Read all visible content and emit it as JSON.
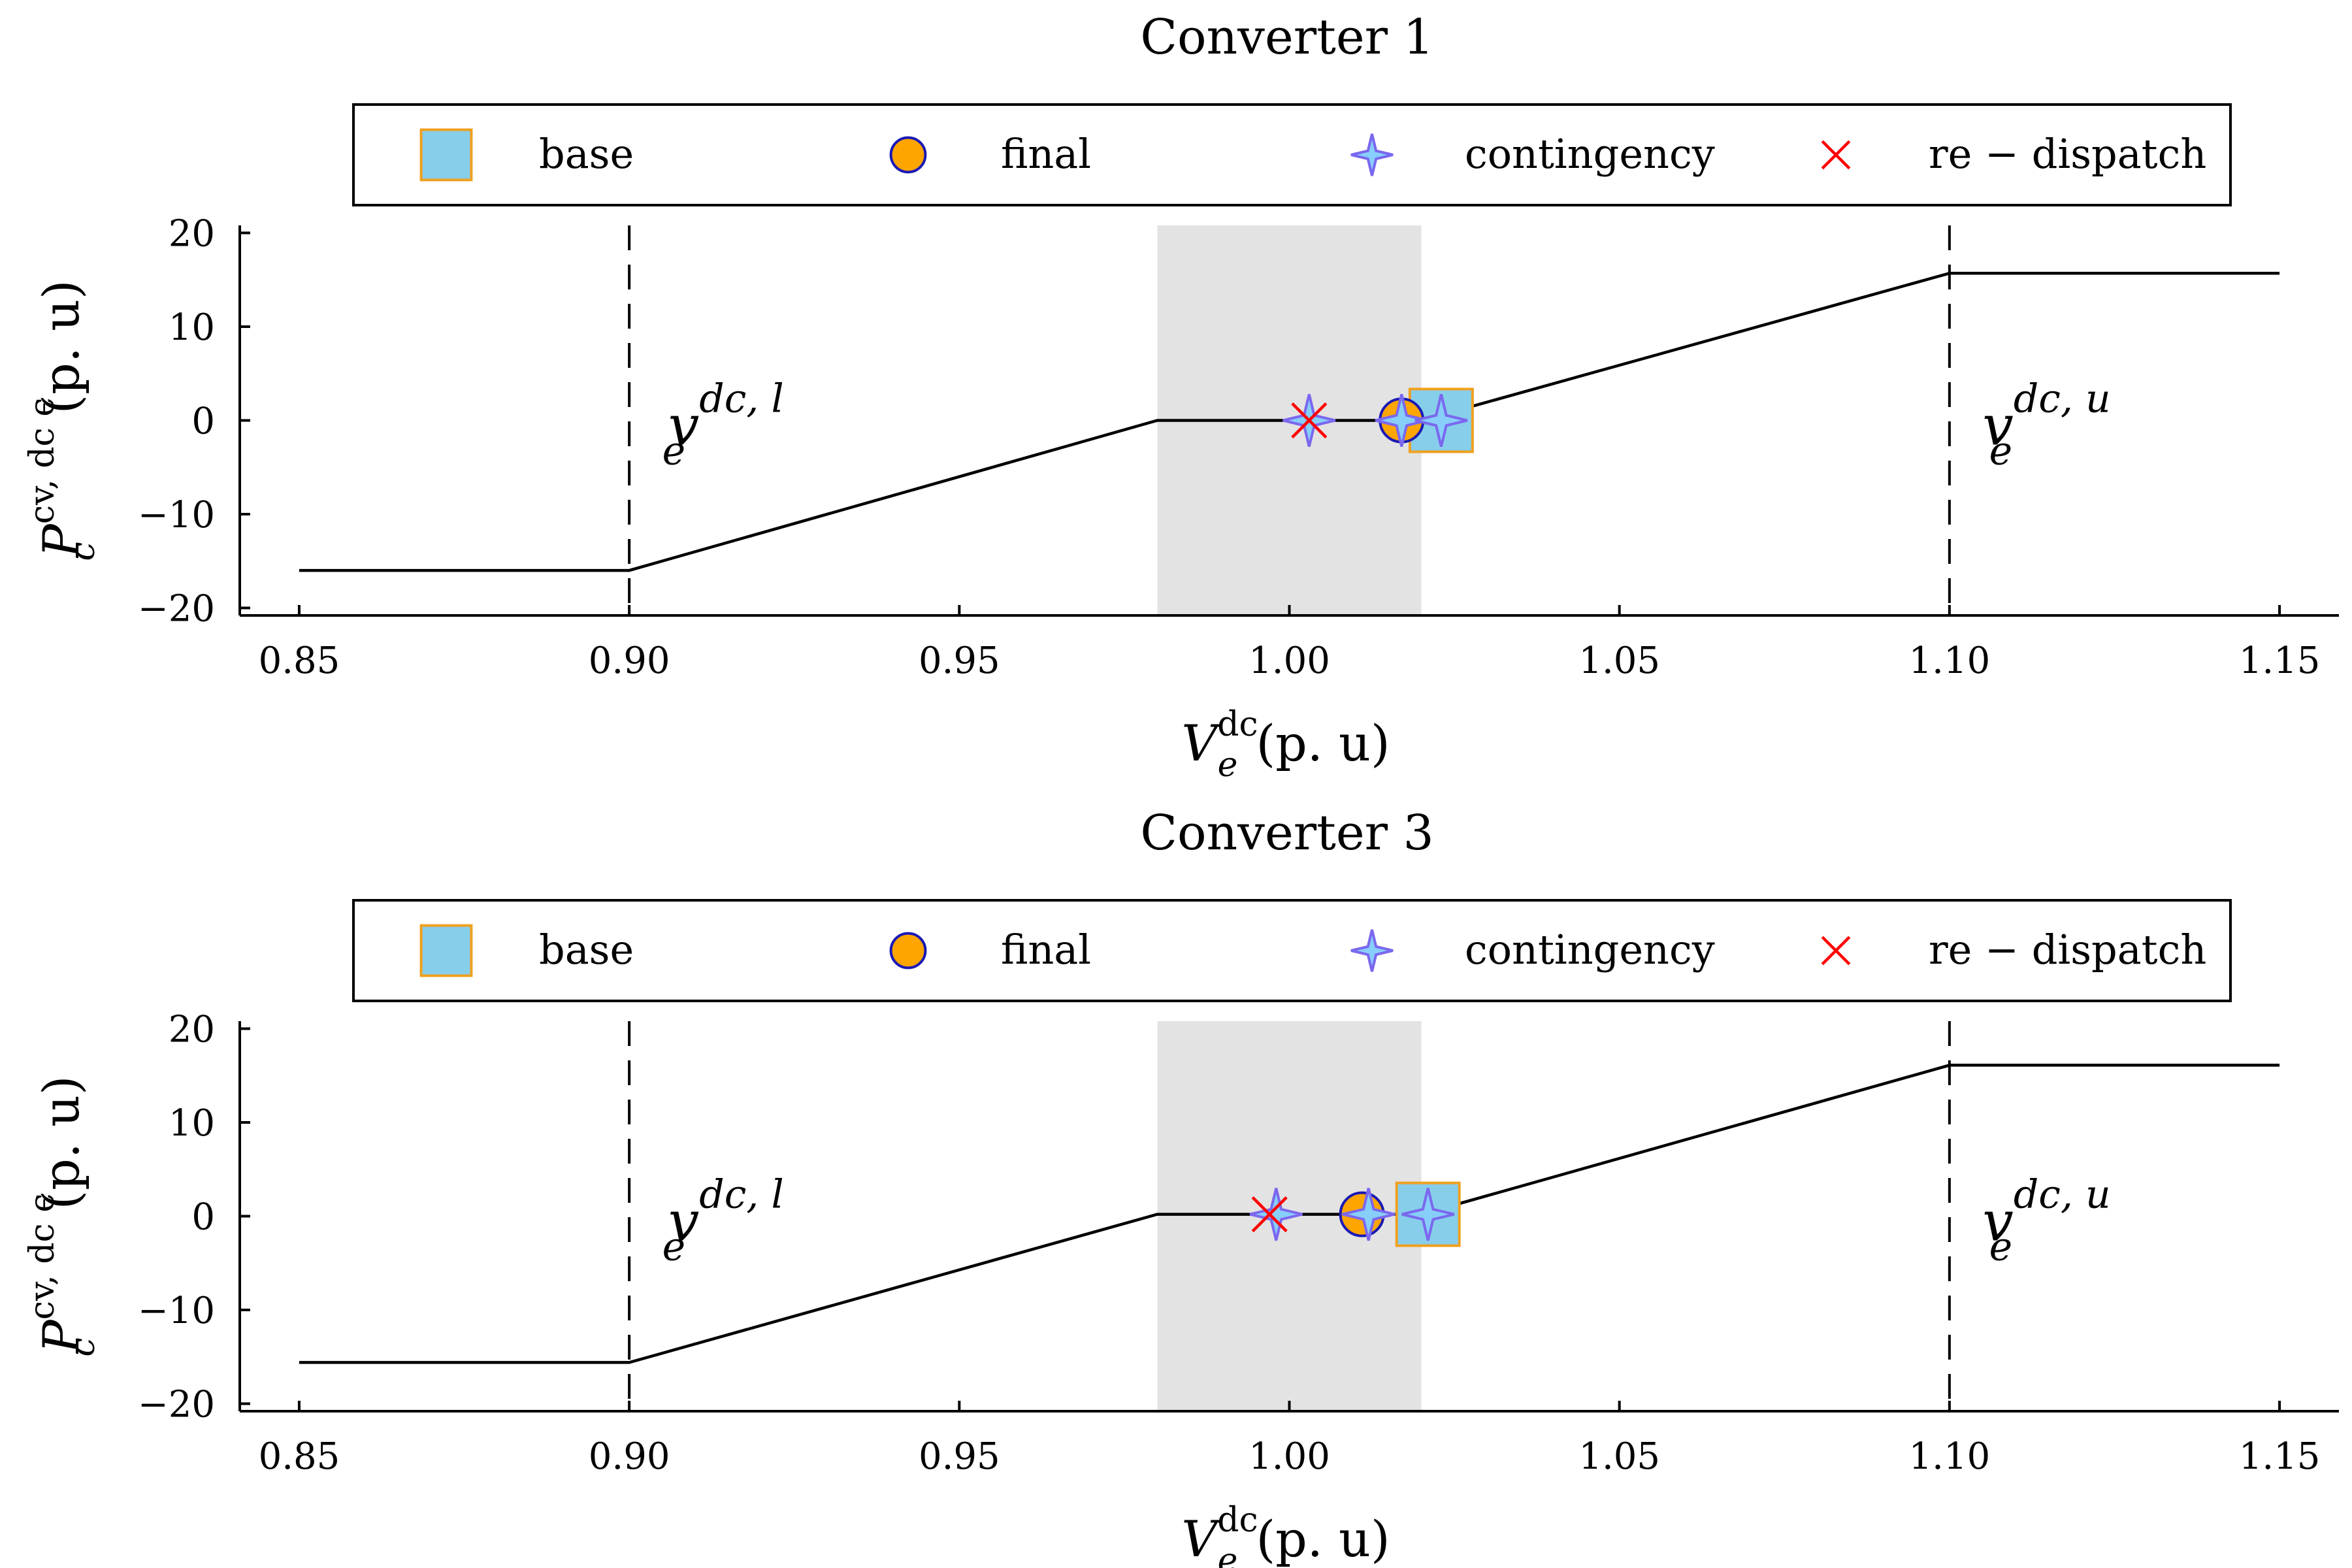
{
  "colors": {
    "shade": "#e3e3e3",
    "curve": "#000000",
    "base_fill": "#87ceeb",
    "base_edge": "#f0a020",
    "final_fill": "#ffa500",
    "final_edge": "#1a1ab4",
    "contingency_fill": "#87cefa",
    "contingency_edge": "#7b68ee",
    "redispatch": "#ff0000"
  },
  "legend": [
    {
      "key": "base",
      "label": "base",
      "marker": "square"
    },
    {
      "key": "final",
      "label": "final",
      "marker": "circle"
    },
    {
      "key": "contingency",
      "label": "contingency",
      "marker": "star4"
    },
    {
      "key": "redispatch",
      "label": "re − dispatch",
      "marker": "x-cross"
    }
  ],
  "chart_data": [
    {
      "type": "line",
      "title": "Converter 1",
      "xlabel_main": "V",
      "xlabel_sup": "dc",
      "xlabel_sub": "e",
      "xlabel_unit": "(p. u)",
      "ylabel_main": "P",
      "ylabel_sup": "cv, dc ϵ",
      "ylabel_sub": "c",
      "ylabel_unit": "(p. u)",
      "xlim": [
        0.841,
        1.159
      ],
      "ylim": [
        -20.8,
        20.8
      ],
      "xticks": [
        0.85,
        0.9,
        0.95,
        1.0,
        1.05,
        1.1,
        1.15
      ],
      "xtick_labels": [
        "0.85",
        "0.90",
        "0.95",
        "1.00",
        "1.05",
        "1.10",
        "1.15"
      ],
      "yticks": [
        -20,
        -10,
        0,
        10,
        20
      ],
      "ytick_labels": [
        "−20",
        "−10",
        "0",
        "10",
        "20"
      ],
      "shaded_band": [
        0.98,
        1.02
      ],
      "vlines": [
        0.9,
        1.1
      ],
      "curve": {
        "x": [
          0.85,
          0.9,
          0.98,
          1.02,
          1.1,
          1.15
        ],
        "y": [
          -16.0,
          -16.0,
          0.0,
          0.0,
          15.7,
          15.7
        ]
      },
      "points": {
        "base": [
          {
            "x": 1.023,
            "y": 0.0
          }
        ],
        "final": [
          {
            "x": 1.017,
            "y": 0.0
          }
        ],
        "contingency": [
          {
            "x": 1.003,
            "y": 0.0
          },
          {
            "x": 1.017,
            "y": 0.0
          },
          {
            "x": 1.023,
            "y": 0.0
          }
        ],
        "redispatch": [
          {
            "x": 1.003,
            "y": 0.0
          }
        ]
      },
      "annotations": [
        {
          "text_main": "v",
          "text_sub": "e",
          "text_sup": "dc, l",
          "x": 0.905,
          "y": -0.5
        },
        {
          "text_main": "v",
          "text_sub": "e",
          "text_sup": "dc, u",
          "x": 1.105,
          "y": -0.5
        }
      ]
    },
    {
      "type": "line",
      "title": "Converter 3",
      "xlabel_main": "V",
      "xlabel_sup": "dc",
      "xlabel_sub": "e",
      "xlabel_unit": "(p. u)",
      "ylabel_main": "P",
      "ylabel_sup": "cv, dc ϵ",
      "ylabel_sub": "c",
      "ylabel_unit": "(p. u)",
      "xlim": [
        0.841,
        1.159
      ],
      "ylim": [
        -20.8,
        20.8
      ],
      "xticks": [
        0.85,
        0.9,
        0.95,
        1.0,
        1.05,
        1.1,
        1.15
      ],
      "xtick_labels": [
        "0.85",
        "0.90",
        "0.95",
        "1.00",
        "1.05",
        "1.10",
        "1.15"
      ],
      "yticks": [
        -20,
        -10,
        0,
        10,
        20
      ],
      "ytick_labels": [
        "−20",
        "−10",
        "0",
        "10",
        "20"
      ],
      "shaded_band": [
        0.98,
        1.02
      ],
      "vlines": [
        0.9,
        1.1
      ],
      "curve": {
        "x": [
          0.85,
          0.9,
          0.98,
          1.02,
          1.1,
          1.15
        ],
        "y": [
          -15.6,
          -15.6,
          0.2,
          0.2,
          16.1,
          16.1
        ]
      },
      "points": {
        "base": [
          {
            "x": 1.021,
            "y": 0.2
          }
        ],
        "final": [
          {
            "x": 1.011,
            "y": 0.2
          }
        ],
        "contingency": [
          {
            "x": 0.998,
            "y": 0.2
          },
          {
            "x": 1.012,
            "y": 0.2
          },
          {
            "x": 1.021,
            "y": 0.2
          }
        ],
        "redispatch": [
          {
            "x": 0.997,
            "y": 0.2
          }
        ]
      },
      "annotations": [
        {
          "text_main": "v",
          "text_sub": "e",
          "text_sup": "dc, l",
          "x": 0.905,
          "y": -0.5
        },
        {
          "text_main": "v",
          "text_sub": "e",
          "text_sup": "dc, u",
          "x": 1.105,
          "y": -0.5
        }
      ]
    }
  ]
}
